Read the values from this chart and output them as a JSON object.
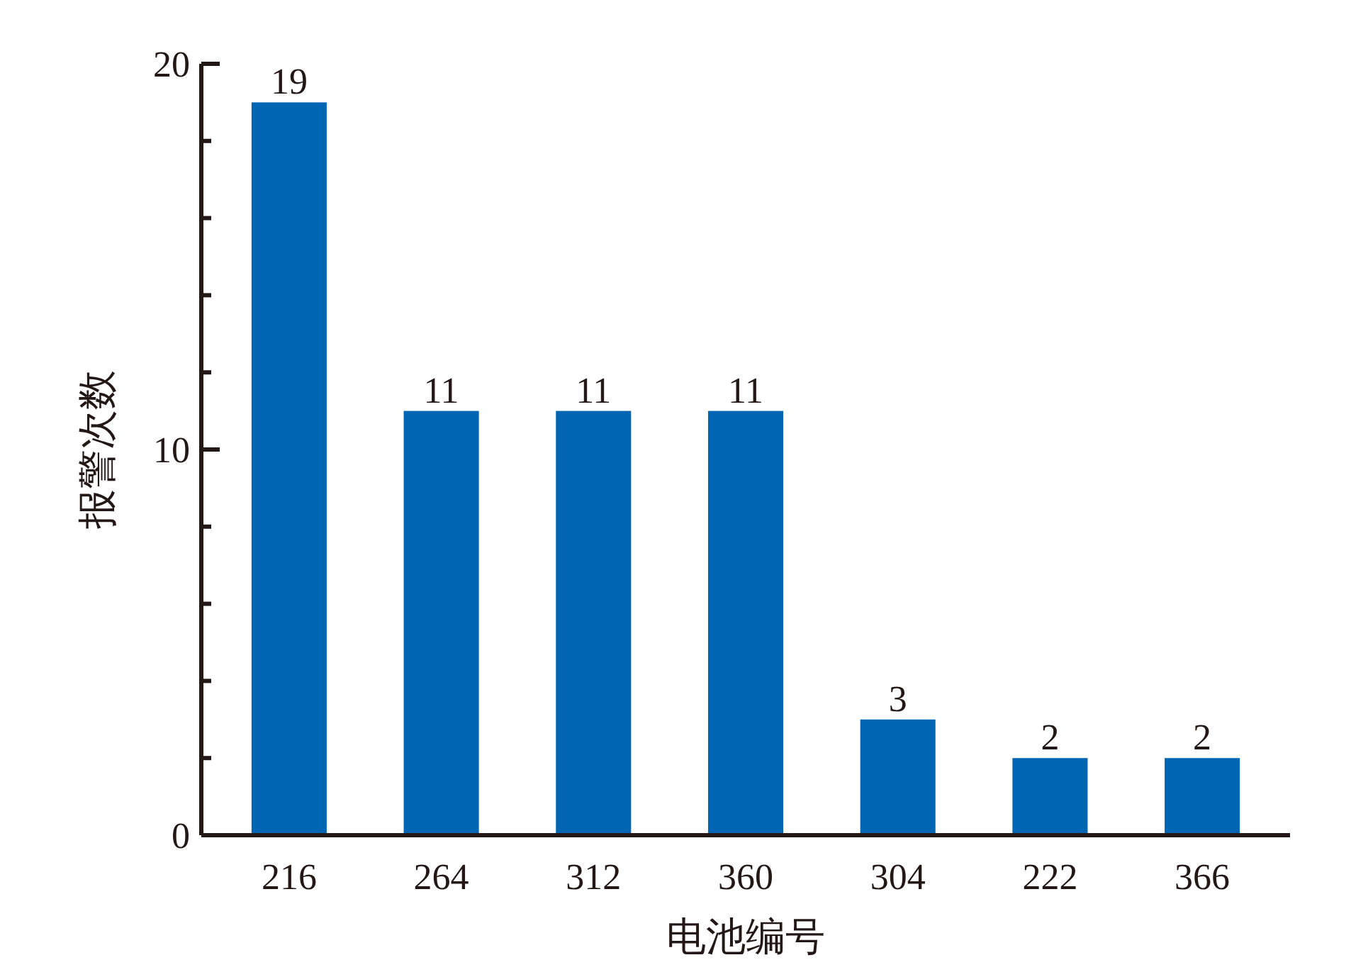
{
  "chart_data": {
    "type": "bar",
    "xlabel": "电池编号",
    "ylabel": "报警次数",
    "categories": [
      "216",
      "264",
      "312",
      "360",
      "304",
      "222",
      "366"
    ],
    "values": [
      19,
      11,
      11,
      11,
      3,
      2,
      2
    ],
    "color": "#0066b3",
    "ylim": [
      0,
      20
    ],
    "yticks": [
      0,
      {
        "value": 2,
        "label": null
      },
      {
        "value": 4,
        "label": null
      },
      {
        "value": 6,
        "label": null
      },
      {
        "value": 8,
        "label": null
      },
      10,
      {
        "value": 12,
        "label": null
      },
      {
        "value": 14,
        "label": null
      },
      {
        "value": 16,
        "label": null
      },
      {
        "value": 18,
        "label": null
      },
      20
    ],
    "data_labels": true
  }
}
